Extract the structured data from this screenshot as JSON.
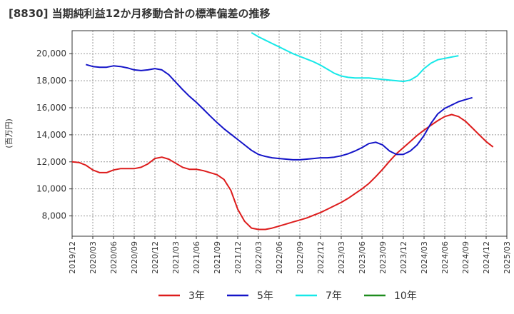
{
  "chart_data": {
    "type": "line",
    "title": "[8830]  当期純利益12か月移動合計の標準偏差の推移",
    "ylabel": "(百万円)",
    "xlabel": "",
    "ylim": [
      6500,
      21700
    ],
    "yticks": [
      8000,
      10000,
      12000,
      14000,
      16000,
      18000,
      20000
    ],
    "ytick_labels": [
      "8,000",
      "10,000",
      "12,000",
      "14,000",
      "16,000",
      "18,000",
      "20,000"
    ],
    "x_tick_labels": [
      "2019/12",
      "2020/03",
      "2020/06",
      "2020/09",
      "2020/12",
      "2021/03",
      "2021/06",
      "2021/09",
      "2021/12",
      "2022/03",
      "2022/06",
      "2022/09",
      "2022/12",
      "2023/03",
      "2023/06",
      "2023/09",
      "2023/12",
      "2024/03",
      "2024/06",
      "2024/09",
      "2024/12",
      "2025/03"
    ],
    "grid": true,
    "legend_position": "bottom",
    "series": [
      {
        "name": "3年",
        "color": "#dd1c1c",
        "start_index": 0,
        "values": [
          12000,
          11950,
          11750,
          11400,
          11200,
          11200,
          11400,
          11500,
          11500,
          11500,
          11600,
          11850,
          12250,
          12350,
          12200,
          11900,
          11600,
          11450,
          11450,
          11350,
          11200,
          11050,
          10700,
          9900,
          8500,
          7600,
          7100,
          7000,
          7000,
          7100,
          7250,
          7400,
          7550,
          7700,
          7850,
          8050,
          8250,
          8500,
          8750,
          9000,
          9300,
          9650,
          10000,
          10400,
          10900,
          11450,
          12050,
          12600,
          13050,
          13500,
          13950,
          14350,
          14700,
          15050,
          15350,
          15500,
          15350,
          15000,
          14500,
          14000,
          13500,
          13100
        ]
      },
      {
        "name": "5年",
        "color": "#1414c8",
        "start_index": 2,
        "values": [
          19200,
          19050,
          19000,
          19000,
          19100,
          19050,
          18950,
          18800,
          18750,
          18800,
          18900,
          18800,
          18450,
          17900,
          17350,
          16850,
          16400,
          15900,
          15400,
          14900,
          14450,
          14050,
          13650,
          13250,
          12850,
          12550,
          12400,
          12300,
          12250,
          12200,
          12150,
          12150,
          12200,
          12250,
          12300,
          12300,
          12350,
          12450,
          12600,
          12800,
          13050,
          13350,
          13450,
          13250,
          12800,
          12550,
          12550,
          12800,
          13250,
          13950,
          14850,
          15550,
          15950,
          16200,
          16450,
          16600,
          16750
        ]
      },
      {
        "name": "7年",
        "color": "#16e8e8",
        "start_index": 26,
        "values": [
          21550,
          21250,
          21000,
          20750,
          20500,
          20250,
          20000,
          19800,
          19600,
          19400,
          19150,
          18850,
          18550,
          18350,
          18250,
          18200,
          18200,
          18200,
          18150,
          18100,
          18050,
          18000,
          17950,
          18050,
          18350,
          18900,
          19300,
          19550,
          19650,
          19750,
          19850
        ]
      },
      {
        "name": "10年",
        "color": "#1e8c1e",
        "start_index": 0,
        "values": []
      }
    ]
  }
}
